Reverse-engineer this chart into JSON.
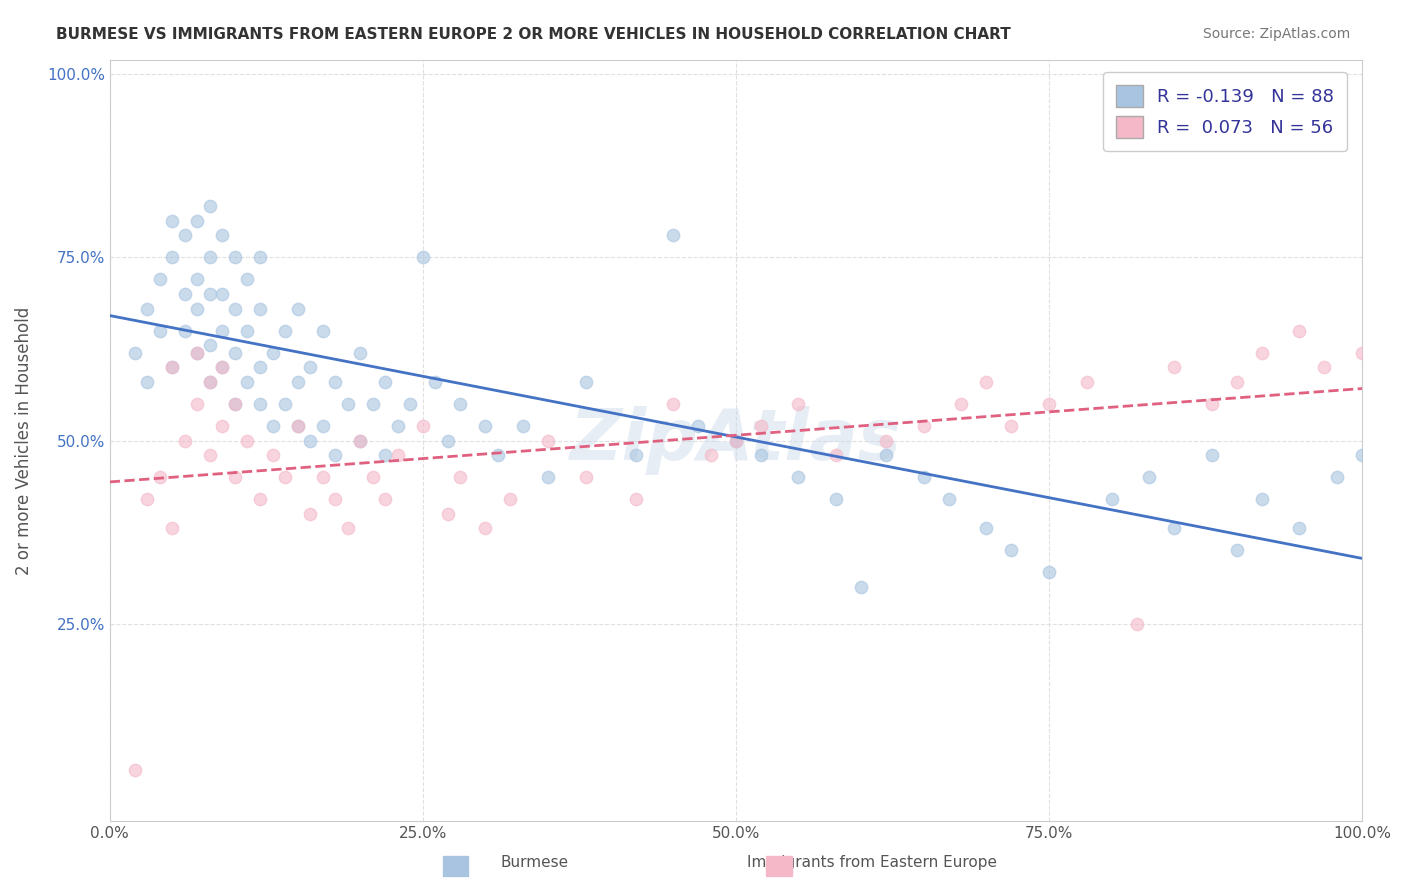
{
  "title": "BURMESE VS IMMIGRANTS FROM EASTERN EUROPE 2 OR MORE VEHICLES IN HOUSEHOLD CORRELATION CHART",
  "source": "Source: ZipAtlas.com",
  "xlabel_bottom": "",
  "ylabel": "2 or more Vehicles in Household",
  "x_min": 0.0,
  "x_max": 1.0,
  "y_min": 0.0,
  "y_max": 1.0,
  "x_ticks": [
    0.0,
    0.25,
    0.5,
    0.75,
    1.0
  ],
  "x_tick_labels": [
    "0.0%",
    "25.0%",
    "50.0%",
    "75.0%",
    "100.0%"
  ],
  "y_ticks": [
    0.25,
    0.5,
    0.75,
    1.0
  ],
  "y_tick_labels": [
    "25.0%",
    "50.0%",
    "75.0%",
    "100.0%"
  ],
  "legend_labels": [
    "Burmese",
    "Immigrants from Eastern Europe"
  ],
  "blue_R": "-0.139",
  "blue_N": "88",
  "pink_R": "0.073",
  "pink_N": "56",
  "blue_color": "#a8c4e0",
  "pink_color": "#f4b8c8",
  "blue_line_color": "#4472c4",
  "pink_line_color": "#e06080",
  "scatter_alpha": 0.6,
  "scatter_size": 80,
  "blue_points_x": [
    0.02,
    0.03,
    0.03,
    0.04,
    0.04,
    0.05,
    0.05,
    0.05,
    0.06,
    0.06,
    0.06,
    0.07,
    0.07,
    0.07,
    0.07,
    0.08,
    0.08,
    0.08,
    0.08,
    0.08,
    0.09,
    0.09,
    0.09,
    0.09,
    0.1,
    0.1,
    0.1,
    0.1,
    0.11,
    0.11,
    0.11,
    0.12,
    0.12,
    0.12,
    0.12,
    0.13,
    0.13,
    0.14,
    0.14,
    0.15,
    0.15,
    0.15,
    0.16,
    0.16,
    0.17,
    0.17,
    0.18,
    0.18,
    0.19,
    0.2,
    0.2,
    0.21,
    0.22,
    0.22,
    0.23,
    0.24,
    0.25,
    0.26,
    0.27,
    0.28,
    0.3,
    0.31,
    0.33,
    0.35,
    0.38,
    0.42,
    0.45,
    0.47,
    0.5,
    0.52,
    0.55,
    0.58,
    0.6,
    0.62,
    0.65,
    0.67,
    0.7,
    0.72,
    0.75,
    0.8,
    0.83,
    0.85,
    0.88,
    0.9,
    0.92,
    0.95,
    0.98,
    1.0
  ],
  "blue_points_y": [
    0.62,
    0.58,
    0.68,
    0.72,
    0.65,
    0.6,
    0.75,
    0.8,
    0.65,
    0.7,
    0.78,
    0.62,
    0.68,
    0.72,
    0.8,
    0.58,
    0.63,
    0.7,
    0.75,
    0.82,
    0.6,
    0.65,
    0.7,
    0.78,
    0.55,
    0.62,
    0.68,
    0.75,
    0.58,
    0.65,
    0.72,
    0.55,
    0.6,
    0.68,
    0.75,
    0.52,
    0.62,
    0.55,
    0.65,
    0.52,
    0.58,
    0.68,
    0.5,
    0.6,
    0.52,
    0.65,
    0.48,
    0.58,
    0.55,
    0.5,
    0.62,
    0.55,
    0.48,
    0.58,
    0.52,
    0.55,
    0.75,
    0.58,
    0.5,
    0.55,
    0.52,
    0.48,
    0.52,
    0.45,
    0.58,
    0.48,
    0.78,
    0.52,
    0.5,
    0.48,
    0.45,
    0.42,
    0.3,
    0.48,
    0.45,
    0.42,
    0.38,
    0.35,
    0.32,
    0.42,
    0.45,
    0.38,
    0.48,
    0.35,
    0.42,
    0.38,
    0.45,
    0.48
  ],
  "pink_points_x": [
    0.02,
    0.03,
    0.04,
    0.05,
    0.05,
    0.06,
    0.07,
    0.07,
    0.08,
    0.08,
    0.09,
    0.09,
    0.1,
    0.1,
    0.11,
    0.12,
    0.13,
    0.14,
    0.15,
    0.16,
    0.17,
    0.18,
    0.19,
    0.2,
    0.21,
    0.22,
    0.23,
    0.25,
    0.27,
    0.28,
    0.3,
    0.32,
    0.35,
    0.38,
    0.42,
    0.45,
    0.48,
    0.5,
    0.52,
    0.55,
    0.58,
    0.62,
    0.65,
    0.68,
    0.7,
    0.72,
    0.75,
    0.78,
    0.82,
    0.85,
    0.88,
    0.9,
    0.92,
    0.95,
    0.97,
    1.0
  ],
  "pink_points_y": [
    0.05,
    0.42,
    0.45,
    0.38,
    0.6,
    0.5,
    0.55,
    0.62,
    0.48,
    0.58,
    0.52,
    0.6,
    0.45,
    0.55,
    0.5,
    0.42,
    0.48,
    0.45,
    0.52,
    0.4,
    0.45,
    0.42,
    0.38,
    0.5,
    0.45,
    0.42,
    0.48,
    0.52,
    0.4,
    0.45,
    0.38,
    0.42,
    0.5,
    0.45,
    0.42,
    0.55,
    0.48,
    0.5,
    0.52,
    0.55,
    0.48,
    0.5,
    0.52,
    0.55,
    0.58,
    0.52,
    0.55,
    0.58,
    0.25,
    0.6,
    0.55,
    0.58,
    0.62,
    0.65,
    0.6,
    0.62
  ],
  "watermark": "ZipAtlas",
  "background_color": "#ffffff",
  "grid_color": "#dddddd"
}
